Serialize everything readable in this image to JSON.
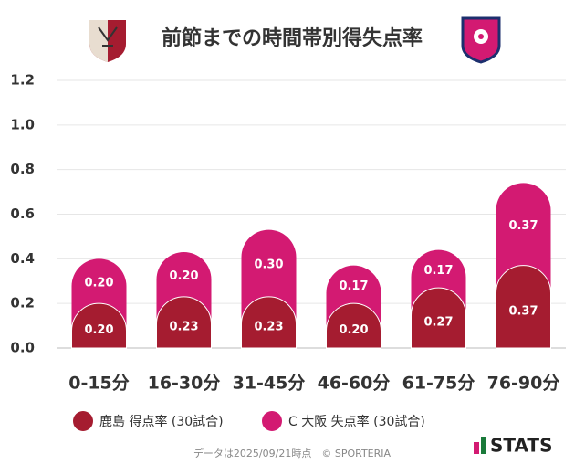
{
  "chart_data": {
    "type": "stacked-bar",
    "title": "前節までの時間帯別得失点率",
    "categories": [
      "0-15分",
      "16-30分",
      "31-45分",
      "46-60分",
      "61-75分",
      "76-90分"
    ],
    "series": [
      {
        "name": "鹿島 得点率 (30試合)",
        "color": "#a51c30",
        "values": [
          0.2,
          0.23,
          0.23,
          0.2,
          0.27,
          0.37
        ],
        "value_labels": [
          "0.20",
          "0.23",
          "0.23",
          "0.20",
          "0.27",
          "0.37"
        ]
      },
      {
        "name": "C 大阪 失点率 (30試合)",
        "color": "#d31a72",
        "values": [
          0.2,
          0.2,
          0.3,
          0.17,
          0.17,
          0.37
        ],
        "value_labels": [
          "0.20",
          "0.20",
          "0.30",
          "0.17",
          "0.17",
          "0.37"
        ]
      }
    ],
    "ylim": [
      0,
      1.2
    ],
    "yticks": [
      {
        "value": 0,
        "label": "0.0"
      },
      0.2,
      0.4,
      0.6,
      0.8,
      {
        "value": 1,
        "label": "1.0"
      },
      1.2
    ],
    "grid": true,
    "footer": "データは2025/09/21時点　© SPORTERIA",
    "logo": "STATS"
  }
}
